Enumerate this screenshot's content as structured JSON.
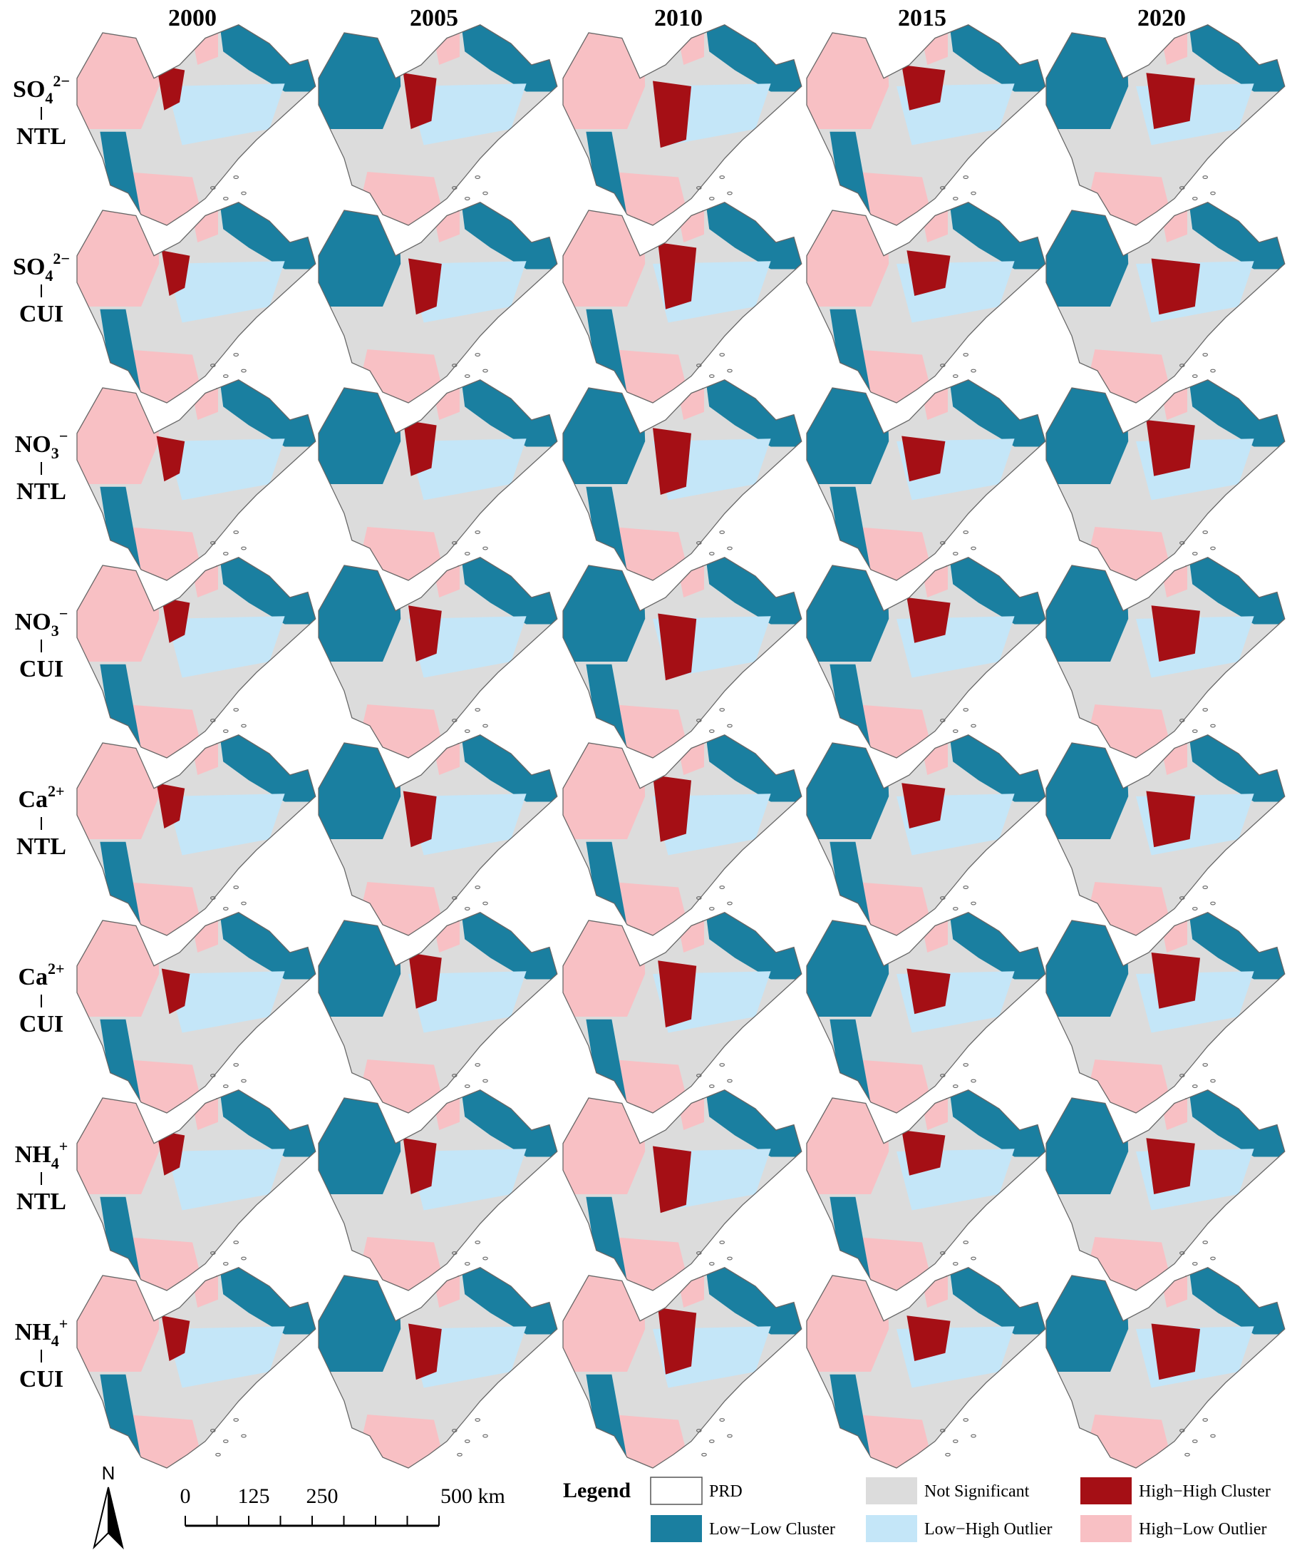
{
  "columns": [
    "2000",
    "2005",
    "2010",
    "2015",
    "2020"
  ],
  "rows": [
    {
      "species": {
        "base": "SO",
        "sub": "4",
        "sup": "2−"
      },
      "index": "NTL"
    },
    {
      "species": {
        "base": "SO",
        "sub": "4",
        "sup": "2−"
      },
      "index": "CUI"
    },
    {
      "species": {
        "base": "NO",
        "sub": "3",
        "sup": "−"
      },
      "index": "NTL"
    },
    {
      "species": {
        "base": "NO",
        "sub": "3",
        "sup": "−"
      },
      "index": "CUI"
    },
    {
      "species": {
        "base": "Ca",
        "sup": "2+"
      },
      "index": "NTL"
    },
    {
      "species": {
        "base": "Ca",
        "sup": "2+"
      },
      "index": "CUI"
    },
    {
      "species": {
        "base": "NH",
        "sub": "4",
        "sup": "+"
      },
      "index": "NTL"
    },
    {
      "species": {
        "base": "NH",
        "sub": "4",
        "sup": "+"
      },
      "index": "CUI"
    }
  ],
  "north_arrow": "N",
  "scale_bar": {
    "labels": [
      "0",
      "125",
      "250",
      "500 km"
    ]
  },
  "legend": {
    "title": "Legend",
    "items": [
      {
        "label": "PRD",
        "color": "#ffffff"
      },
      {
        "label": "Not Significant",
        "color": "#dcdcdc"
      },
      {
        "label": "High−High Cluster",
        "color": "#a50f15"
      },
      {
        "label": "Low−Low Cluster",
        "color": "#1a7fa0"
      },
      {
        "label": "Low−High Outlier",
        "color": "#c4e6f8"
      },
      {
        "label": "High−Low Outlier",
        "color": "#f8c0c4"
      }
    ]
  }
}
